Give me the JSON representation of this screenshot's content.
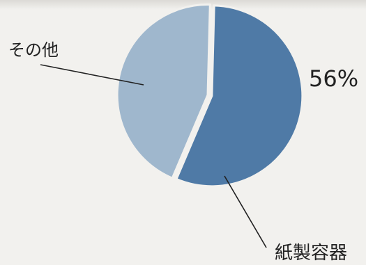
{
  "chart_data": {
    "type": "pie",
    "slices": [
      {
        "label": "紙製容器",
        "value": 56,
        "value_label": "56%",
        "color": "#4f7aa6"
      },
      {
        "label": "その他",
        "value": 44,
        "color": "#9fb7cd"
      }
    ]
  }
}
